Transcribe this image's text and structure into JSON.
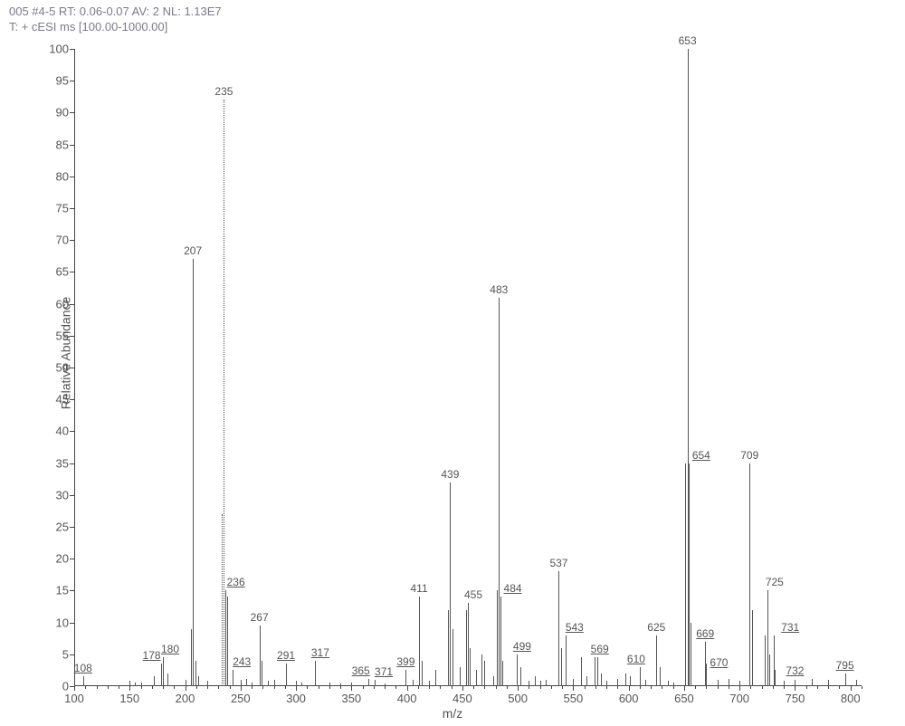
{
  "header": {
    "line1": "005 #4-5  RT: 0.06-0.07  AV: 2  NL: 1.13E7",
    "line2": "T: + cESI ms [100.00-1000.00]"
  },
  "chart": {
    "type": "mass-spectrum",
    "xlabel": "m/z",
    "ylabel": "Relative Abundance",
    "xlim": [
      100,
      810
    ],
    "ylim": [
      0,
      100
    ],
    "x_major_step": 50,
    "x_minor_step": 10,
    "y_major_step": 5,
    "background_color": "#ffffff",
    "axis_color": "#444444",
    "text_color": "#555555",
    "label_fontsize": 14,
    "tick_fontsize": 13,
    "peak_label_fontsize": 12,
    "peaks": [
      {
        "mz": 108,
        "intensity": 1.5,
        "label": "108",
        "label_underline": true
      },
      {
        "mz": 150,
        "intensity": 0.8
      },
      {
        "mz": 155,
        "intensity": 0.6
      },
      {
        "mz": 160,
        "intensity": 0.5
      },
      {
        "mz": 172,
        "intensity": 1.5
      },
      {
        "mz": 178,
        "intensity": 3.5,
        "label": "178",
        "label_underline": true,
        "label_dx": -10
      },
      {
        "mz": 180,
        "intensity": 4.5,
        "label": "180",
        "label_underline": true,
        "label_dx": 8
      },
      {
        "mz": 184,
        "intensity": 2
      },
      {
        "mz": 200,
        "intensity": 1
      },
      {
        "mz": 205,
        "intensity": 9
      },
      {
        "mz": 207,
        "intensity": 67,
        "label": "207"
      },
      {
        "mz": 209,
        "intensity": 4
      },
      {
        "mz": 212,
        "intensity": 1.5
      },
      {
        "mz": 220,
        "intensity": 0.8
      },
      {
        "mz": 233,
        "intensity": 27,
        "dotted": true
      },
      {
        "mz": 235,
        "intensity": 92,
        "label": "235",
        "dotted": true
      },
      {
        "mz": 236,
        "intensity": 15,
        "label": "236",
        "label_underline": true,
        "label_dx": 12
      },
      {
        "mz": 238,
        "intensity": 14
      },
      {
        "mz": 243,
        "intensity": 2.5,
        "label": "243",
        "label_underline": true,
        "label_dx": 10
      },
      {
        "mz": 250,
        "intensity": 1
      },
      {
        "mz": 255,
        "intensity": 1.2
      },
      {
        "mz": 260,
        "intensity": 0.6
      },
      {
        "mz": 267,
        "intensity": 9.5,
        "label": "267"
      },
      {
        "mz": 269,
        "intensity": 4
      },
      {
        "mz": 275,
        "intensity": 0.8
      },
      {
        "mz": 280,
        "intensity": 1
      },
      {
        "mz": 291,
        "intensity": 3.5,
        "label": "291",
        "label_underline": true
      },
      {
        "mz": 300,
        "intensity": 0.8
      },
      {
        "mz": 305,
        "intensity": 0.6
      },
      {
        "mz": 317,
        "intensity": 4,
        "label": "317",
        "label_underline": true,
        "label_dx": 6
      },
      {
        "mz": 330,
        "intensity": 0.5
      },
      {
        "mz": 340,
        "intensity": 0.4
      },
      {
        "mz": 350,
        "intensity": 0.5
      },
      {
        "mz": 365,
        "intensity": 1.2,
        "label": "365",
        "label_underline": true,
        "label_dx": -8
      },
      {
        "mz": 371,
        "intensity": 1,
        "label": "371",
        "label_underline": true,
        "label_dx": 10
      },
      {
        "mz": 380,
        "intensity": 0.4
      },
      {
        "mz": 399,
        "intensity": 2.5,
        "label": "399",
        "label_underline": true
      },
      {
        "mz": 405,
        "intensity": 1
      },
      {
        "mz": 411,
        "intensity": 14,
        "label": "411"
      },
      {
        "mz": 413,
        "intensity": 4
      },
      {
        "mz": 420,
        "intensity": 0.8
      },
      {
        "mz": 426,
        "intensity": 2.5
      },
      {
        "mz": 437,
        "intensity": 12
      },
      {
        "mz": 439,
        "intensity": 32,
        "label": "439"
      },
      {
        "mz": 441,
        "intensity": 9
      },
      {
        "mz": 448,
        "intensity": 3
      },
      {
        "mz": 453,
        "intensity": 12
      },
      {
        "mz": 455,
        "intensity": 13,
        "label": "455",
        "label_dx": 6
      },
      {
        "mz": 457,
        "intensity": 6
      },
      {
        "mz": 462,
        "intensity": 2.5
      },
      {
        "mz": 467,
        "intensity": 5
      },
      {
        "mz": 470,
        "intensity": 4
      },
      {
        "mz": 478,
        "intensity": 1.5
      },
      {
        "mz": 481,
        "intensity": 15
      },
      {
        "mz": 483,
        "intensity": 61,
        "label": "483"
      },
      {
        "mz": 484,
        "intensity": 14,
        "label": "484",
        "label_underline": true,
        "label_dx": 14
      },
      {
        "mz": 486,
        "intensity": 4
      },
      {
        "mz": 499,
        "intensity": 5,
        "label": "499",
        "label_underline": true,
        "label_dx": 6
      },
      {
        "mz": 502,
        "intensity": 3
      },
      {
        "mz": 510,
        "intensity": 0.8
      },
      {
        "mz": 515,
        "intensity": 1.5
      },
      {
        "mz": 520,
        "intensity": 0.8
      },
      {
        "mz": 525,
        "intensity": 1
      },
      {
        "mz": 537,
        "intensity": 18,
        "label": "537"
      },
      {
        "mz": 539,
        "intensity": 6
      },
      {
        "mz": 543,
        "intensity": 8,
        "label": "543",
        "label_underline": true,
        "label_dx": 10
      },
      {
        "mz": 550,
        "intensity": 1.2
      },
      {
        "mz": 557,
        "intensity": 4.5
      },
      {
        "mz": 562,
        "intensity": 1.5
      },
      {
        "mz": 569,
        "intensity": 4.5,
        "label": "569",
        "label_underline": true,
        "label_dx": 6
      },
      {
        "mz": 572,
        "intensity": 4.5
      },
      {
        "mz": 575,
        "intensity": 2
      },
      {
        "mz": 580,
        "intensity": 0.8
      },
      {
        "mz": 590,
        "intensity": 1.2
      },
      {
        "mz": 597,
        "intensity": 2
      },
      {
        "mz": 601,
        "intensity": 1.5
      },
      {
        "mz": 610,
        "intensity": 3,
        "label": "610",
        "label_underline": true,
        "label_dx": -4
      },
      {
        "mz": 615,
        "intensity": 1
      },
      {
        "mz": 625,
        "intensity": 8,
        "label": "625"
      },
      {
        "mz": 628,
        "intensity": 3
      },
      {
        "mz": 635,
        "intensity": 0.8
      },
      {
        "mz": 640,
        "intensity": 0.6
      },
      {
        "mz": 651,
        "intensity": 35
      },
      {
        "mz": 653,
        "intensity": 100,
        "label": "653"
      },
      {
        "mz": 654,
        "intensity": 35,
        "label": "654",
        "label_underline": true,
        "label_dx": 14
      },
      {
        "mz": 656,
        "intensity": 10
      },
      {
        "mz": 669,
        "intensity": 7,
        "label": "669",
        "label_underline": true
      },
      {
        "mz": 670,
        "intensity": 3.5,
        "label": "670",
        "label_underline": true,
        "label_dx": 14,
        "label_dy": 8
      },
      {
        "mz": 680,
        "intensity": 1
      },
      {
        "mz": 690,
        "intensity": 1.2
      },
      {
        "mz": 700,
        "intensity": 0.8
      },
      {
        "mz": 709,
        "intensity": 35,
        "label": "709"
      },
      {
        "mz": 711,
        "intensity": 12
      },
      {
        "mz": 723,
        "intensity": 8
      },
      {
        "mz": 725,
        "intensity": 15,
        "label": "725",
        "label_dx": 8
      },
      {
        "mz": 727,
        "intensity": 5
      },
      {
        "mz": 731,
        "intensity": 8,
        "label": "731",
        "label_underline": true,
        "label_dx": 18
      },
      {
        "mz": 732,
        "intensity": 2.5,
        "label": "732",
        "label_underline": true,
        "label_dx": 22,
        "label_dy": 10
      },
      {
        "mz": 740,
        "intensity": 0.8
      },
      {
        "mz": 750,
        "intensity": 1
      },
      {
        "mz": 765,
        "intensity": 1.2
      },
      {
        "mz": 780,
        "intensity": 1
      },
      {
        "mz": 795,
        "intensity": 2,
        "label": "795",
        "label_underline": true
      },
      {
        "mz": 805,
        "intensity": 1
      }
    ]
  }
}
